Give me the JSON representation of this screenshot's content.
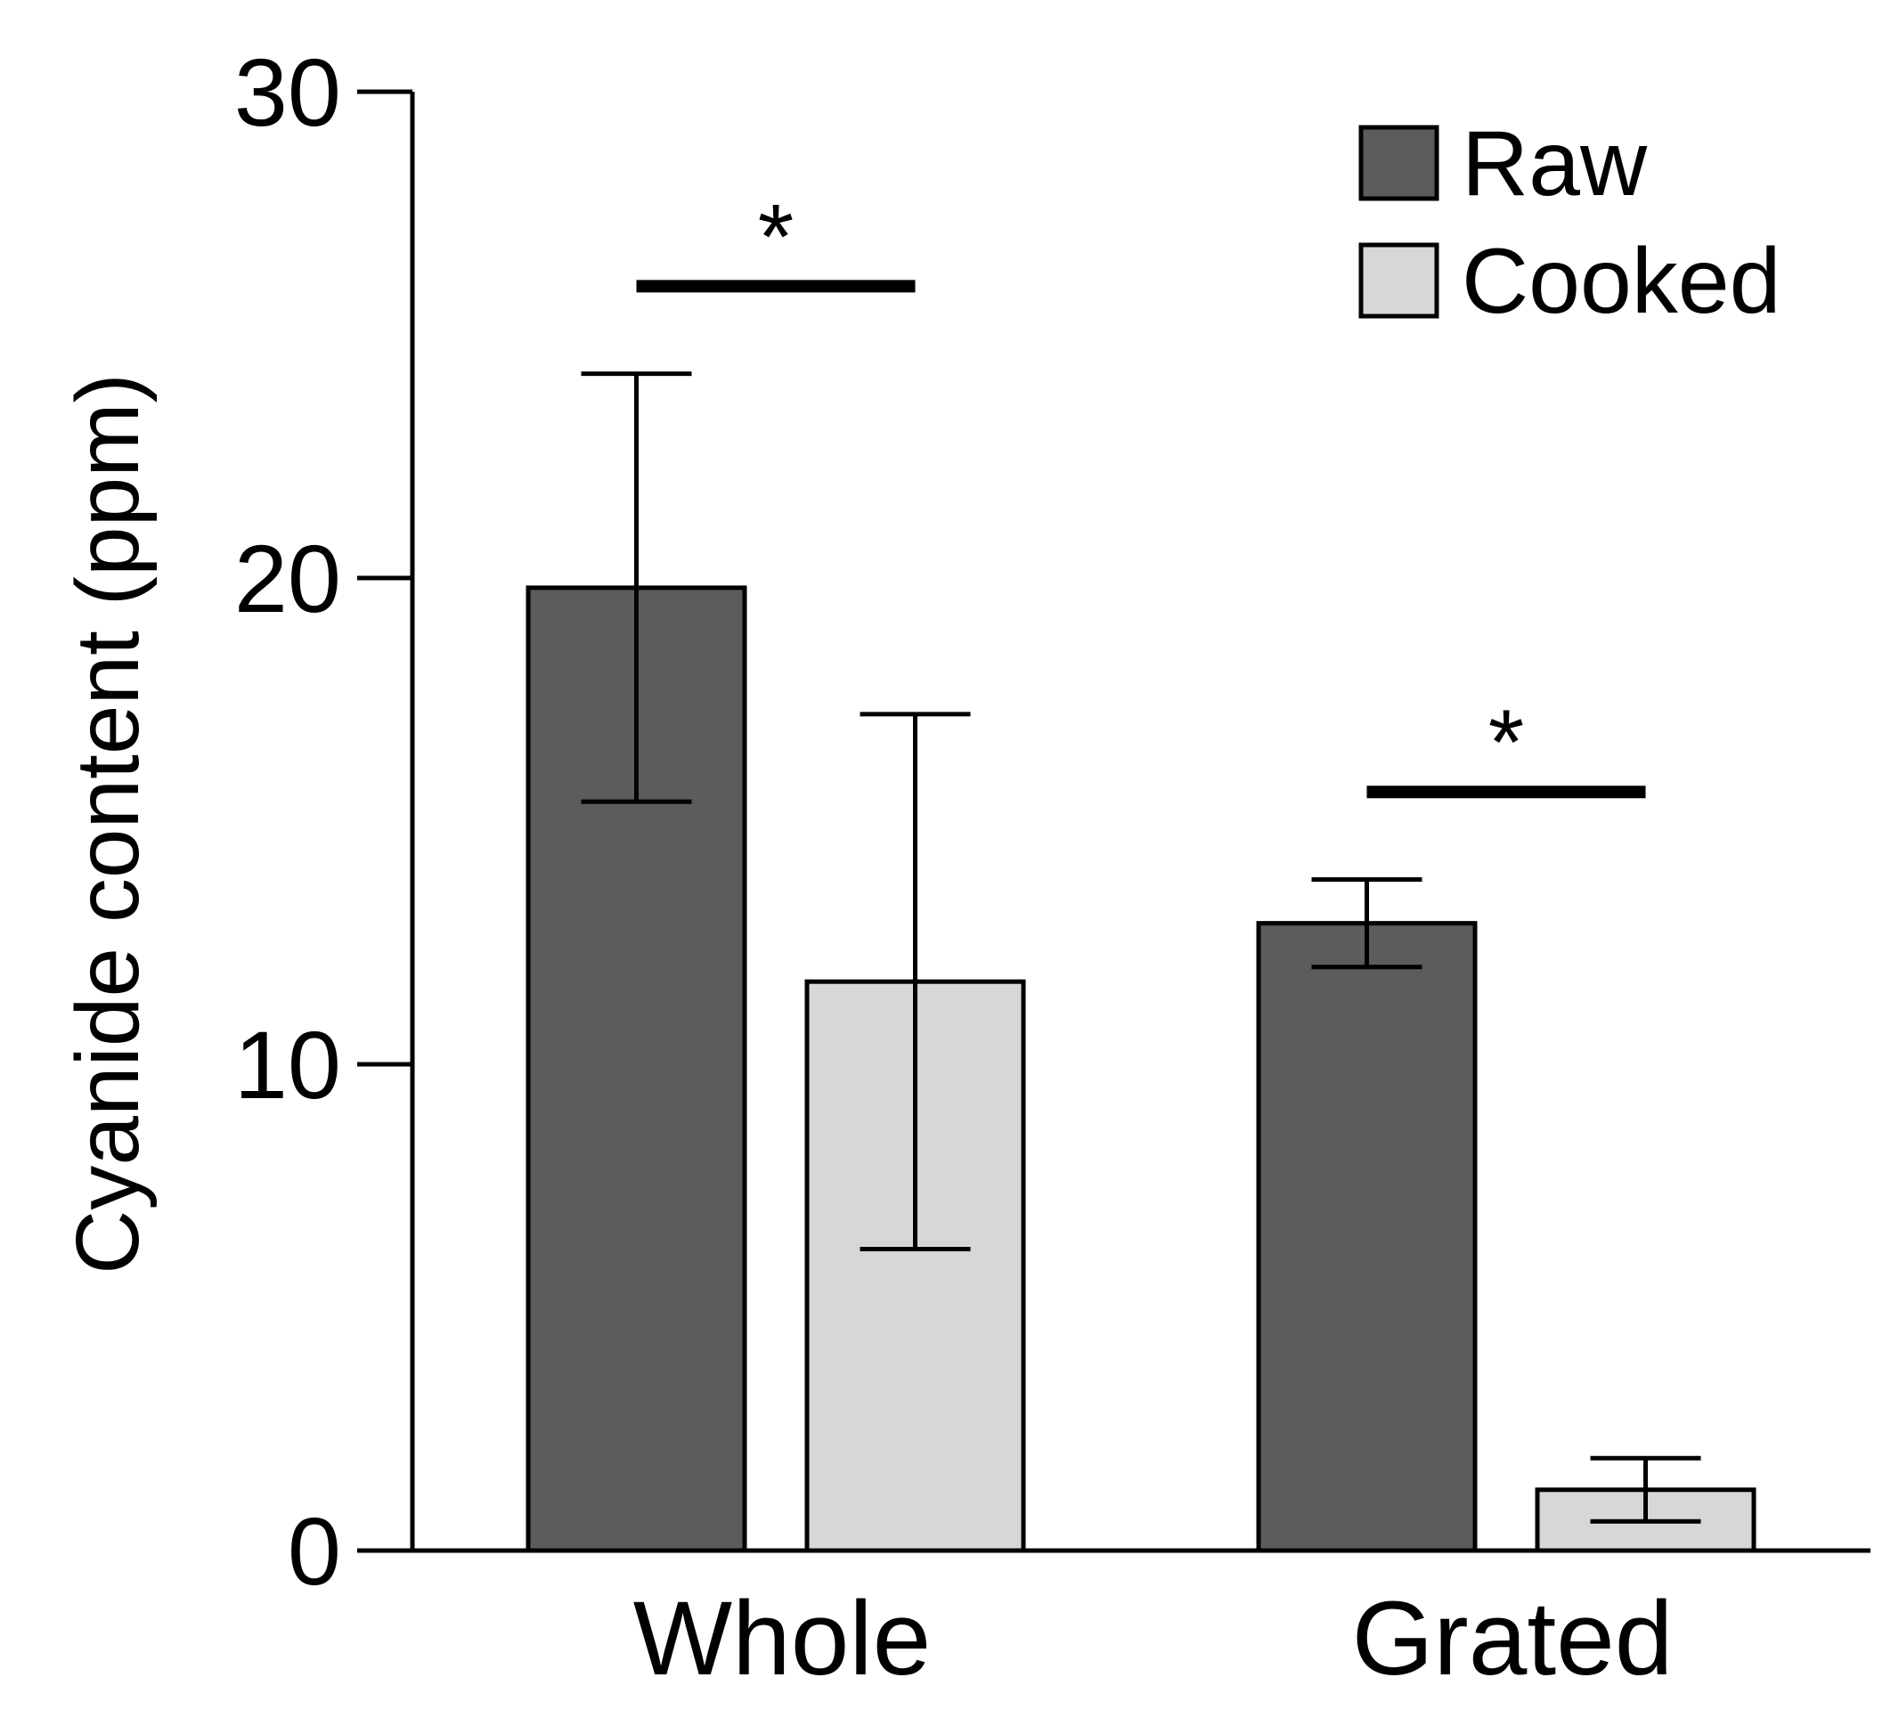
{
  "chart_data": {
    "type": "bar",
    "title": "",
    "xlabel": "",
    "ylabel": "Cyanide content (ppm)",
    "ylim": [
      0,
      30
    ],
    "yticks": [
      "0",
      "10",
      "20",
      "30"
    ],
    "categories": [
      "Whole",
      "Grated"
    ],
    "series": [
      {
        "name": "Raw",
        "values": [
          19.8,
          12.9
        ],
        "error": [
          4.4,
          0.9
        ]
      },
      {
        "name": "Cooked",
        "values": [
          11.7,
          1.25
        ],
        "error": [
          5.5,
          0.65
        ]
      }
    ],
    "legend": {
      "position": "top-right",
      "entries": [
        "Raw",
        "Cooked"
      ]
    },
    "grid": false,
    "significance": [
      {
        "category": "Whole",
        "marker": "*",
        "level": 26.0
      },
      {
        "category": "Grated",
        "marker": "*",
        "level": 15.6
      }
    ]
  },
  "colors": {
    "raw_fill": "#5c5c5c",
    "cooked_fill": "#d7d7d7",
    "stroke": "#000000",
    "background": "#ffffff"
  }
}
